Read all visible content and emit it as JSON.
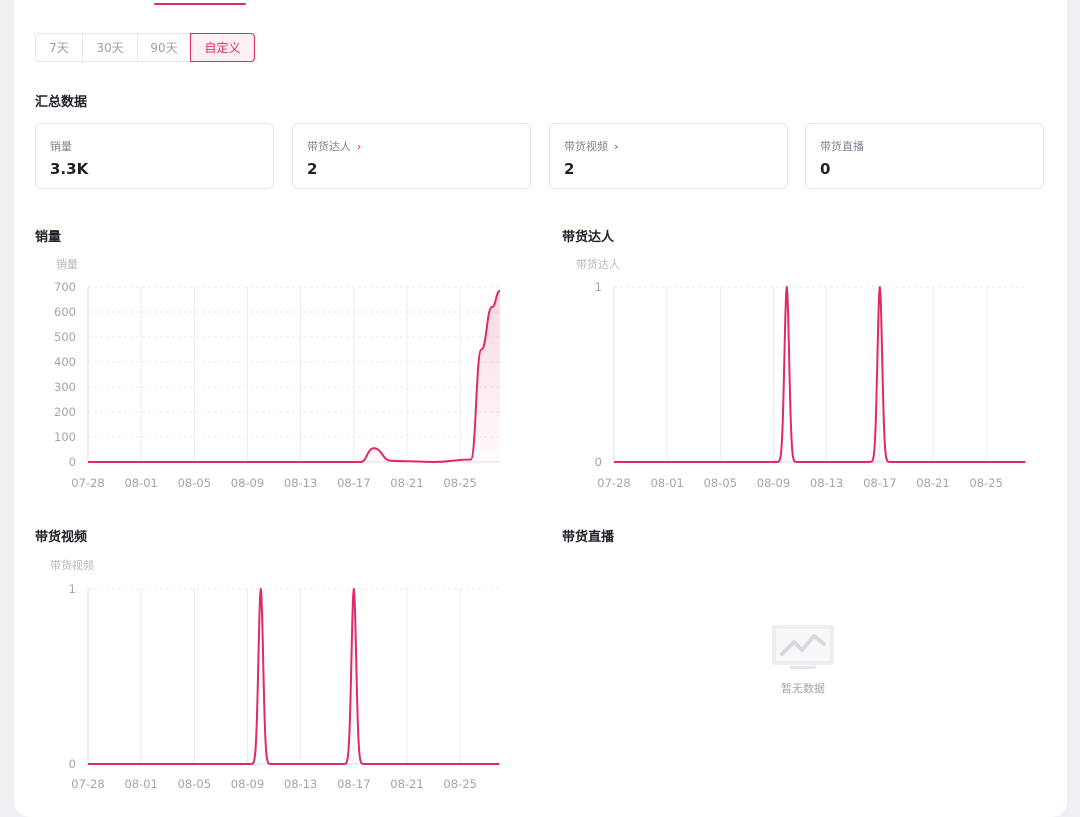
{
  "ranges": [
    {
      "label": "7天",
      "active": false
    },
    {
      "label": "30天",
      "active": false
    },
    {
      "label": "90天",
      "active": false
    },
    {
      "label": "自定义",
      "active": true
    }
  ],
  "summary": {
    "title": "汇总数据",
    "cards": [
      {
        "label": "销量",
        "value": "3.3K",
        "link": false
      },
      {
        "label": "带货达人",
        "value": "2",
        "link": true
      },
      {
        "label": "带货视频",
        "value": "2",
        "link": true
      },
      {
        "label": "带货直播",
        "value": "0",
        "link": false
      }
    ]
  },
  "colors": {
    "accent": "#e0286b",
    "grid": "#e9ebf0",
    "axis_text": "#a0a4ad"
  },
  "empty_state": {
    "text": "暂无数据",
    "icon": "empty-chart-icon"
  },
  "chart_data": [
    {
      "id": "sales",
      "title": "销量",
      "type": "area",
      "ylabel": "销量",
      "yticks": [
        0,
        100,
        200,
        300,
        400,
        500,
        600,
        700
      ],
      "ylim": [
        0,
        700
      ],
      "xticks": [
        "07-28",
        "08-01",
        "08-05",
        "08-09",
        "08-13",
        "08-17",
        "08-21",
        "08-25"
      ],
      "x_range_days": [
        0,
        31
      ],
      "series": [
        {
          "x": [
            0,
            20.5,
            21.5,
            22.8,
            24,
            26,
            28.8,
            29.6,
            30.4,
            31
          ],
          "y": [
            0,
            0,
            55,
            5,
            3,
            0,
            10,
            450,
            620,
            685
          ]
        }
      ]
    },
    {
      "id": "influencers",
      "title": "带货达人",
      "type": "line",
      "ylabel": "带货达人",
      "yticks": [
        0,
        1
      ],
      "ylim": [
        0,
        1
      ],
      "xticks": [
        "07-28",
        "08-01",
        "08-05",
        "08-09",
        "08-13",
        "08-17",
        "08-21",
        "08-25"
      ],
      "x_range_days": [
        0,
        31
      ],
      "series": [
        {
          "peaks": [
            13,
            20
          ],
          "y": 1
        }
      ]
    },
    {
      "id": "videos",
      "title": "带货视频",
      "type": "line",
      "ylabel": "带货视频",
      "yticks": [
        0,
        1
      ],
      "ylim": [
        0,
        1
      ],
      "xticks": [
        "07-28",
        "08-01",
        "08-05",
        "08-09",
        "08-13",
        "08-17",
        "08-21",
        "08-25"
      ],
      "x_range_days": [
        0,
        31
      ],
      "series": [
        {
          "peaks": [
            13,
            20
          ],
          "y": 1
        }
      ]
    },
    {
      "id": "live",
      "title": "带货直播",
      "type": "line",
      "series": []
    }
  ]
}
